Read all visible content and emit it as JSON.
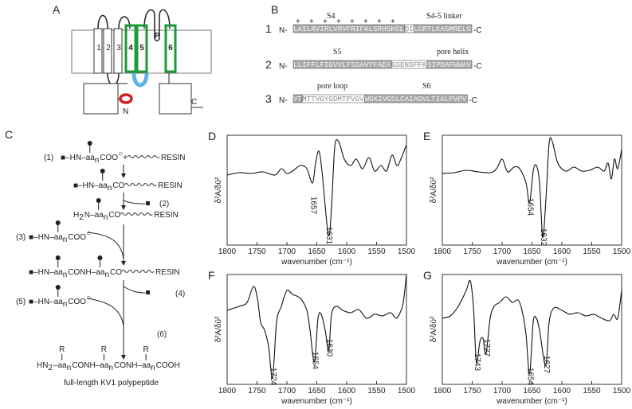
{
  "panels": {
    "A": {
      "label": "A",
      "segments": [
        "1",
        "2",
        "3",
        "4",
        "5",
        "P",
        "6"
      ],
      "n_term": "N",
      "c_term": "C"
    },
    "B": {
      "label": "B",
      "charge": "+",
      "rows": [
        {
          "index": "1",
          "n": "N-",
          "c": "-C",
          "labels": [
            "S4",
            "S4-5 linker"
          ],
          "segments": [
            {
              "text": "LAILRVIRLVRVFRIFKLSRHSKGL",
              "shade": true
            },
            {
              "text": "QI",
              "shade": false
            },
            {
              "text": "LGRTLKASMRELG",
              "shade": true
            }
          ]
        },
        {
          "index": "2",
          "n": "N-",
          "c": "-C",
          "labels": [
            "S5",
            "pore helix"
          ],
          "segments": [
            {
              "text": "LLIFFLFIGVVLFSSAVYFAEA",
              "shade": true
            },
            {
              "text": "GSENSFFK",
              "shade": false
            },
            {
              "text": "SIPDAFWWAV",
              "shade": true
            }
          ]
        },
        {
          "index": "3",
          "n": "N-",
          "c": "-C",
          "labels": [
            "pore loop",
            "S6"
          ],
          "segments": [
            {
              "text": "VT",
              "shade": true
            },
            {
              "text": "MTTVGYGDMTPVGV",
              "shade": false
            },
            {
              "text": "WGKIVGSLCAIAGVLTIALPVPV",
              "shade": true
            }
          ]
        }
      ]
    },
    "C": {
      "label": "C",
      "steps": [
        "(1)",
        "(2)",
        "(3)",
        "(4)",
        "(5)",
        "(6)"
      ],
      "caption": "full-length KV1 polypeptide",
      "lines": [
        [
          {
            "t": "■–HN–aa",
            "pin": true
          },
          {
            "sub": "n"
          },
          {
            "t": "COO"
          },
          {
            "sup": "○"
          },
          {
            "t": "+"
          },
          {
            "t": "RESIN",
            "wave": true
          }
        ],
        [
          {
            "t": "■–HN–aa",
            "pin": true
          },
          {
            "sub": "n"
          },
          {
            "t": "CO"
          },
          {
            "t": "RESIN",
            "wave": true
          }
        ],
        [
          {
            "t": "H"
          },
          {
            "sub": "2"
          },
          {
            "t": "N–aa",
            "pin": true
          },
          {
            "sub": "n"
          },
          {
            "t": "CO"
          },
          {
            "t": "RESIN",
            "wave": true
          }
        ],
        [
          {
            "t": "■–HN–aa",
            "pin": true
          },
          {
            "sub": "n"
          },
          {
            "t": "COO"
          },
          {
            "sup": "○"
          }
        ],
        [
          {
            "t": "■–HN–aa",
            "pin": true
          },
          {
            "sub": "n"
          },
          {
            "t": "CONH–aa",
            "pin": true
          },
          {
            "sub": "n"
          },
          {
            "t": "CO"
          },
          {
            "t": "RESIN",
            "wave": true
          }
        ],
        [
          {
            "t": "■–HN–aa",
            "pin": true
          },
          {
            "sub": "n"
          },
          {
            "t": "COO"
          },
          {
            "sup": "○"
          }
        ],
        [
          {
            "t": "HN"
          },
          {
            "sub": "2"
          },
          {
            "t": "–aa",
            "r": "R"
          },
          {
            "sub": "n"
          },
          {
            "t": "CONH–aa",
            "r": "R"
          },
          {
            "sub": "n"
          },
          {
            "t": "CONH–aa",
            "r": "R"
          },
          {
            "sub": "n"
          },
          {
            "t": "COOH"
          }
        ]
      ]
    },
    "spectra": [
      {
        "label": "D",
        "x_label": "wavenumber (cm⁻¹)",
        "y_label": "δ²A/δῡ²",
        "xlim": [
          1800,
          1500
        ],
        "xticks": [
          1800,
          1750,
          1700,
          1650,
          1600,
          1550,
          1500
        ],
        "peaks": [
          1657,
          1631
        ]
      },
      {
        "label": "E",
        "x_label": "wavenumber (cm⁻¹)",
        "y_label": "δ²A/δῡ²",
        "xlim": [
          1800,
          1500
        ],
        "xticks": [
          1800,
          1750,
          1700,
          1650,
          1600,
          1550,
          1500
        ],
        "peaks": [
          1654,
          1632
        ]
      },
      {
        "label": "F",
        "x_label": "wavenumber (cm⁻¹)",
        "y_label": "δ²A/δῡ²",
        "xlim": [
          1800,
          1500
        ],
        "xticks": [
          1800,
          1750,
          1700,
          1650,
          1600,
          1550,
          1500
        ],
        "peaks": [
          1724,
          1654,
          1630
        ]
      },
      {
        "label": "G",
        "x_label": "wavenumber (cm⁻¹)",
        "y_label": "δ²A/δῡ²",
        "xlim": [
          1800,
          1500
        ],
        "xticks": [
          1800,
          1750,
          1700,
          1650,
          1600,
          1550,
          1500
        ],
        "peaks": [
          1743,
          1727,
          1654,
          1627
        ]
      }
    ]
  }
}
